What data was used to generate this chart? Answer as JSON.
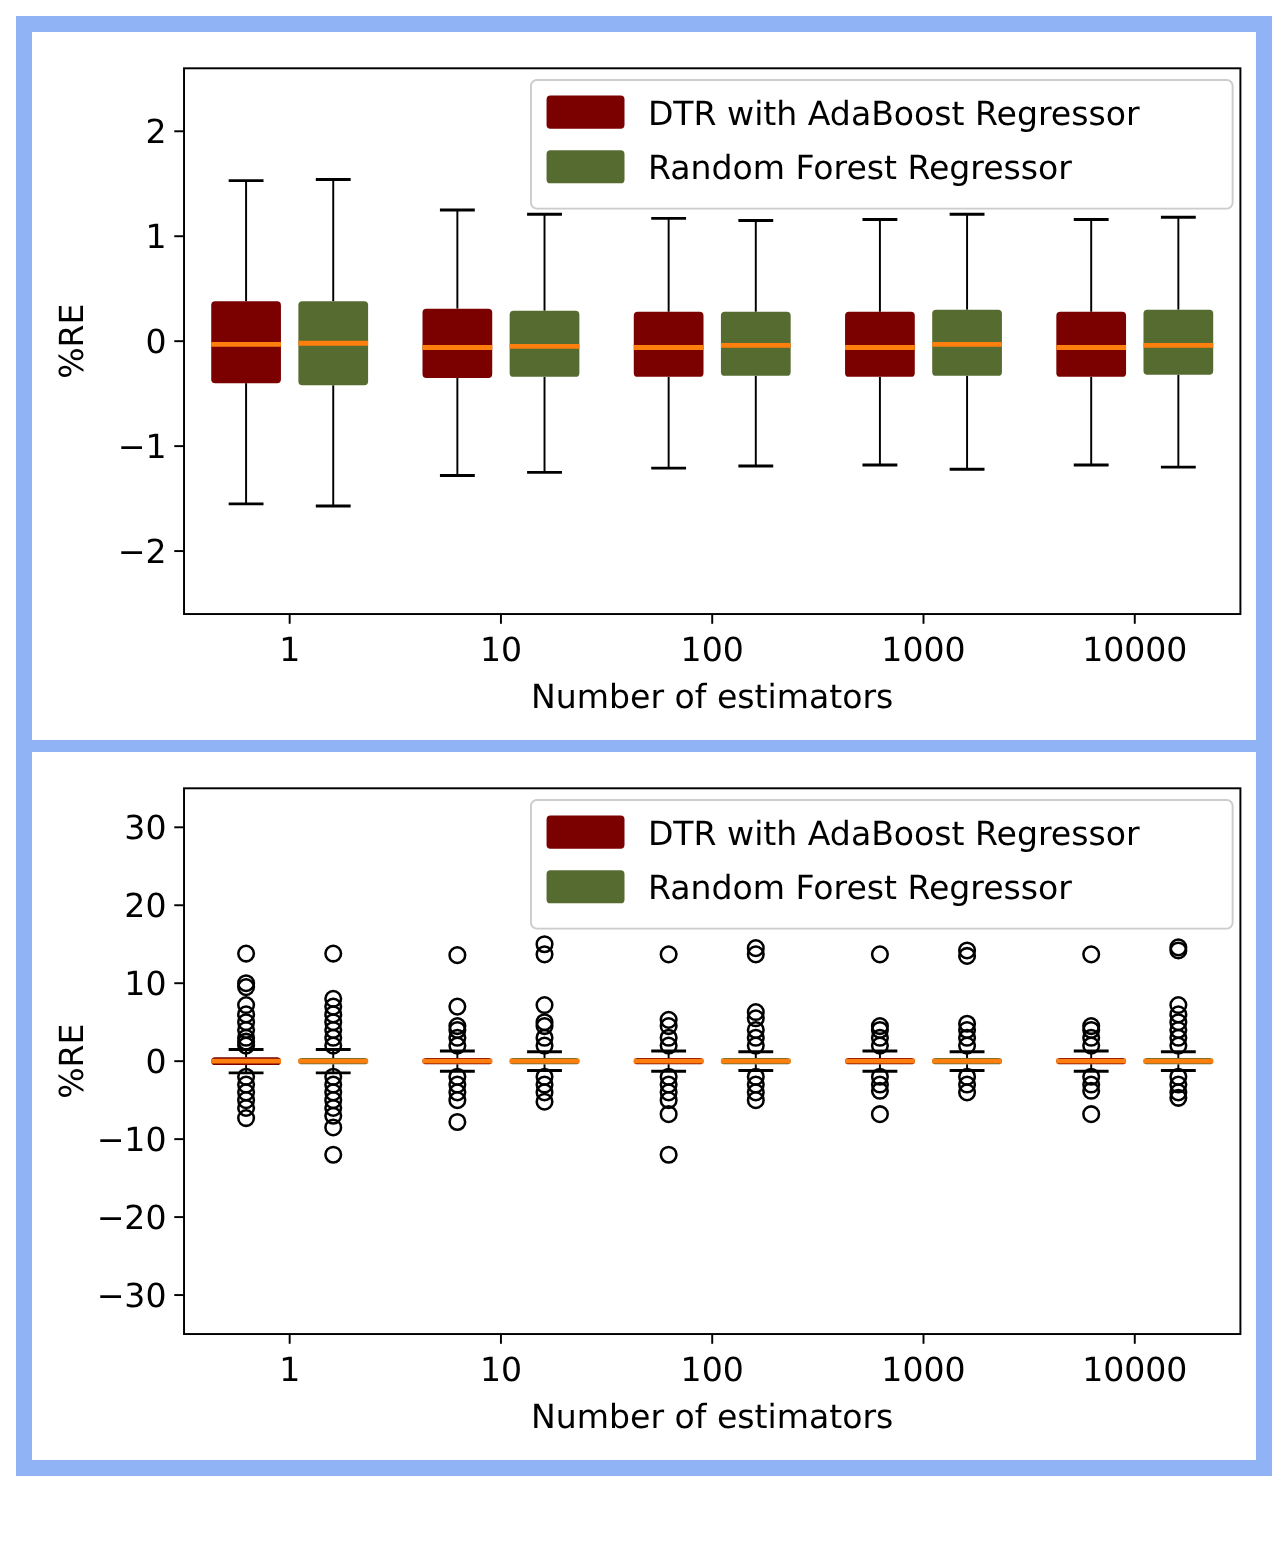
{
  "chart_data": [
    {
      "type": "box",
      "xlabel": "Number of estimators",
      "ylabel": "%RE",
      "categories": [
        "1",
        "10",
        "100",
        "1000",
        "10000"
      ],
      "ylim": [
        -2.6,
        2.6
      ],
      "yticks": [
        2,
        1,
        0,
        {
          "value": -1,
          "label": "−1"
        },
        {
          "value": -2,
          "label": "−2"
        }
      ],
      "legend": "top right",
      "grid": false,
      "series": [
        {
          "name": "DTR with AdaBoost Regressor",
          "color": "#7b0000",
          "boxes": [
            {
              "low": -1.55,
              "q1": -0.4,
              "median": -0.03,
              "q3": 0.38,
              "high": 1.53
            },
            {
              "low": -1.28,
              "q1": -0.35,
              "median": -0.06,
              "q3": 0.31,
              "high": 1.25
            },
            {
              "low": -1.21,
              "q1": -0.34,
              "median": -0.06,
              "q3": 0.28,
              "high": 1.17
            },
            {
              "low": -1.18,
              "q1": -0.34,
              "median": -0.06,
              "q3": 0.28,
              "high": 1.16
            },
            {
              "low": -1.18,
              "q1": -0.34,
              "median": -0.06,
              "q3": 0.28,
              "high": 1.16
            }
          ]
        },
        {
          "name": "Random Forest Regressor",
          "color": "#556b2f",
          "boxes": [
            {
              "low": -1.57,
              "q1": -0.42,
              "median": -0.02,
              "q3": 0.38,
              "high": 1.54
            },
            {
              "low": -1.25,
              "q1": -0.34,
              "median": -0.05,
              "q3": 0.29,
              "high": 1.21
            },
            {
              "low": -1.19,
              "q1": -0.33,
              "median": -0.04,
              "q3": 0.28,
              "high": 1.15
            },
            {
              "low": -1.22,
              "q1": -0.33,
              "median": -0.03,
              "q3": 0.3,
              "high": 1.21
            },
            {
              "low": -1.2,
              "q1": -0.32,
              "median": -0.04,
              "q3": 0.3,
              "high": 1.18
            }
          ]
        }
      ]
    },
    {
      "type": "box",
      "xlabel": "Number of estimators",
      "ylabel": "%RE",
      "categories": [
        "1",
        "10",
        "100",
        "1000",
        "10000"
      ],
      "ylim": [
        -35,
        35
      ],
      "yticks": [
        30,
        20,
        10,
        0,
        {
          "value": -10,
          "label": "−10"
        },
        {
          "value": -20,
          "label": "−20"
        },
        {
          "value": -30,
          "label": "−30"
        }
      ],
      "legend": "top right",
      "grid": false,
      "series": [
        {
          "name": "DTR with AdaBoost Regressor",
          "color": "#7b0000",
          "boxes": [
            {
              "low": -1.5,
              "q1": -0.5,
              "median": 0,
              "q3": 0.5,
              "high": 1.5,
              "outliers": [
                13.8,
                10,
                9.5,
                7.2,
                6,
                5,
                4,
                3,
                2.5,
                2,
                -2,
                -3,
                -4,
                -5,
                -6,
                -7.3
              ]
            },
            {
              "low": -1.3,
              "q1": -0.4,
              "median": 0,
              "q3": 0.4,
              "high": 1.3,
              "outliers": [
                13.6,
                7,
                4.5,
                4,
                3,
                2,
                -2,
                -3,
                -4,
                -5,
                -7.8
              ]
            },
            {
              "low": -1.3,
              "q1": -0.4,
              "median": 0,
              "q3": 0.4,
              "high": 1.3,
              "outliers": [
                13.7,
                5.3,
                4.5,
                3,
                2,
                -2,
                -3,
                -4,
                -5,
                -6.8,
                -12
              ]
            },
            {
              "low": -1.3,
              "q1": -0.4,
              "median": 0,
              "q3": 0.4,
              "high": 1.3,
              "outliers": [
                13.7,
                4.5,
                4,
                3,
                2,
                -2,
                -3,
                -3.8,
                -6.8
              ]
            },
            {
              "low": -1.3,
              "q1": -0.4,
              "median": 0,
              "q3": 0.4,
              "high": 1.3,
              "outliers": [
                13.7,
                4.5,
                4,
                3,
                2,
                -2,
                -3,
                -3.8,
                -6.8
              ]
            }
          ]
        },
        {
          "name": "Random Forest Regressor",
          "color": "#556b2f",
          "boxes": [
            {
              "low": -1.5,
              "q1": -0.4,
              "median": 0,
              "q3": 0.4,
              "high": 1.5,
              "outliers": [
                13.8,
                8,
                7,
                6,
                5,
                4,
                3,
                2,
                -2,
                -3,
                -4,
                -5,
                -6,
                -7,
                -8.5,
                -12
              ]
            },
            {
              "low": -1.2,
              "q1": -0.4,
              "median": 0,
              "q3": 0.4,
              "high": 1.2,
              "outliers": [
                15,
                13.7,
                7.2,
                5,
                4.5,
                3,
                2,
                -2,
                -3,
                -4,
                -5.2
              ]
            },
            {
              "low": -1.2,
              "q1": -0.4,
              "median": 0,
              "q3": 0.4,
              "high": 1.2,
              "outliers": [
                14.5,
                13.7,
                6.3,
                5.5,
                4,
                3,
                2,
                -2,
                -3,
                -4,
                -5
              ]
            },
            {
              "low": -1.2,
              "q1": -0.4,
              "median": 0,
              "q3": 0.4,
              "high": 1.2,
              "outliers": [
                14.2,
                13.5,
                4.8,
                4,
                3,
                2,
                -2,
                -3,
                -4
              ]
            },
            {
              "low": -1.2,
              "q1": -0.4,
              "median": 0,
              "q3": 0.4,
              "high": 1.2,
              "outliers": [
                14.6,
                14.2,
                7.2,
                6,
                5,
                4,
                3,
                2,
                -2,
                -3,
                -4,
                -4.7
              ]
            }
          ]
        }
      ]
    }
  ]
}
